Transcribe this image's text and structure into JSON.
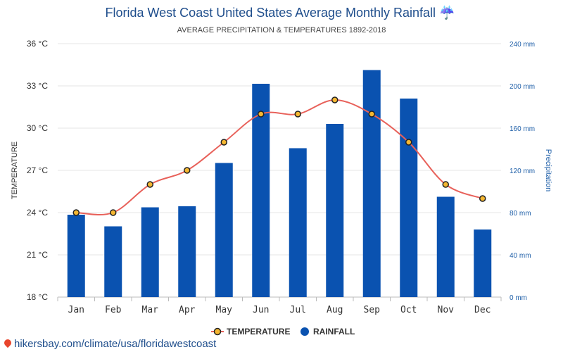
{
  "chart_data": {
    "type": "bar+line",
    "title": "Florida West Coast United States Average Monthly Rainfall",
    "title_icon": "umbrella-rain-icon",
    "title_icon_glyph": "☔",
    "subtitle": "AVERAGE PRECIPITATION & TEMPERATURES 1892-2018",
    "categories": [
      "Jan",
      "Feb",
      "Mar",
      "Apr",
      "May",
      "Jun",
      "Jul",
      "Aug",
      "Sep",
      "Oct",
      "Nov",
      "Dec"
    ],
    "y_left": {
      "label": "TEMPERATURE",
      "ylim": [
        18,
        36
      ],
      "ticks": [
        18,
        21,
        24,
        27,
        30,
        33,
        36
      ],
      "tick_labels": [
        "18 °C",
        "21 °C",
        "24 °C",
        "27 °C",
        "30 °C",
        "33 °C",
        "36 °C"
      ]
    },
    "y_right": {
      "label": "Precipitation",
      "ylim": [
        0,
        240
      ],
      "ticks": [
        0,
        40,
        80,
        120,
        160,
        200,
        240
      ],
      "tick_labels": [
        "0 mm",
        "40 mm",
        "80 mm",
        "120 mm",
        "160 mm",
        "200 mm",
        "240 mm"
      ]
    },
    "series": [
      {
        "name": "TEMPERATURE",
        "type": "line",
        "axis": "left",
        "unit": "°C",
        "color": "#e8615a",
        "marker_color": "#f5b731",
        "values": [
          24,
          24,
          26,
          27,
          29,
          31,
          31,
          32,
          31,
          29,
          26,
          25
        ]
      },
      {
        "name": "RAINFALL",
        "type": "bar",
        "axis": "right",
        "unit": "mm",
        "color": "#0a52b0",
        "values": [
          78,
          67,
          85,
          86,
          127,
          202,
          141,
          164,
          215,
          188,
          95,
          64
        ]
      }
    ],
    "grid": true,
    "legend_position": "bottom-center"
  },
  "footer": {
    "icon": "map-pin-icon",
    "text": "hikersbay.com/climate/usa/floridawestcoast"
  }
}
